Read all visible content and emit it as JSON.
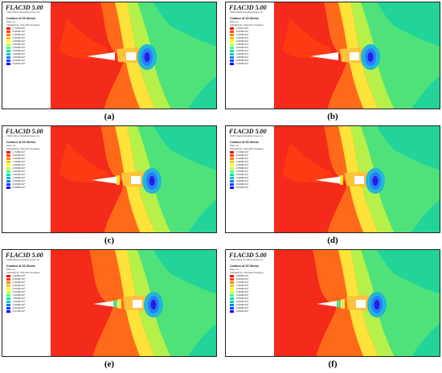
{
  "software_title": "FLAC3D 5.00",
  "copyright": "©2012 Itasca Consulting Group, Inc.",
  "contour_title": "Contour of ZZ-Stress",
  "plane_label": "Plane: on",
  "calc_note": "Calculated by: Volumetric Averaging",
  "level_colors": [
    "#ff0000",
    "#ff4000",
    "#ff8000",
    "#ffc000",
    "#ffff00",
    "#c0ff40",
    "#40ff80",
    "#00e0a0",
    "#00c0e0",
    "#0080ff",
    "#0040ff",
    "#0000ff"
  ],
  "panels": [
    {
      "caption": "(a)",
      "levels": [
        "-1.7224×10⁵",
        "-5.0000×10⁵",
        "-1.0000×10⁶",
        "-1.5000×10⁶",
        "-2.0000×10⁶",
        "-2.5000×10⁶",
        "-3.0000×10⁶",
        "-3.5000×10⁶",
        "-4.0000×10⁶",
        "-4.5000×10⁶",
        "-5.0000×10⁶",
        "-5.3067×10⁶"
      ]
    },
    {
      "caption": "(b)",
      "levels": [
        "-1.0617×10⁵",
        "-5.0000×10⁵",
        "-1.0000×10⁶",
        "-1.5000×10⁶",
        "-2.0000×10⁶",
        "-2.5000×10⁶",
        "-3.0000×10⁶",
        "-3.5000×10⁶",
        "-4.0000×10⁶",
        "-4.5000×10⁶",
        "-5.0000×10⁶",
        "-5.2969×10⁶"
      ]
    },
    {
      "caption": "(c)",
      "levels": [
        "-1.7250×10⁵",
        "-5.0000×10⁵",
        "-1.0000×10⁶",
        "-1.5000×10⁶",
        "-2.0000×10⁶",
        "-2.5000×10⁶",
        "-3.0000×10⁶",
        "-3.5000×10⁶",
        "-4.0000×10⁶",
        "-4.5000×10⁶",
        "-5.0000×10⁶",
        "-5.2860×10⁶"
      ]
    },
    {
      "caption": "(d)",
      "levels": [
        "-1.7260×10⁵",
        "-5.0000×10⁵",
        "-1.0000×10⁶",
        "-1.5000×10⁶",
        "-2.0000×10⁶",
        "-2.5000×10⁶",
        "-3.0000×10⁶",
        "-3.5000×10⁶",
        "-4.0000×10⁶",
        "-4.5000×10⁶",
        "-5.0000×10⁶",
        "-5.2400×10⁶"
      ]
    },
    {
      "caption": "(e)",
      "levels": [
        "-3.4051×10⁵",
        "-5.0000×10⁵",
        "-1.0000×10⁶",
        "-1.5000×10⁶",
        "-2.0000×10⁶",
        "-2.5000×10⁶",
        "-3.0000×10⁶",
        "-3.5000×10⁶",
        "-4.0000×10⁶",
        "-4.5000×10⁶",
        "-5.0000×10⁶",
        "-5.1726×10⁶"
      ]
    },
    {
      "caption": "(f)",
      "levels": [
        "-2.9855×10⁵",
        "-5.0000×10⁵",
        "-1.0000×10⁶",
        "-1.5000×10⁶",
        "-2.0000×10⁶",
        "-2.5000×10⁶",
        "-3.0000×10⁶",
        "-3.5000×10⁶",
        "-4.0000×10⁶",
        "-4.5000×10⁶",
        "-5.0000×10⁶",
        "-5.0661×10⁶"
      ]
    }
  ]
}
